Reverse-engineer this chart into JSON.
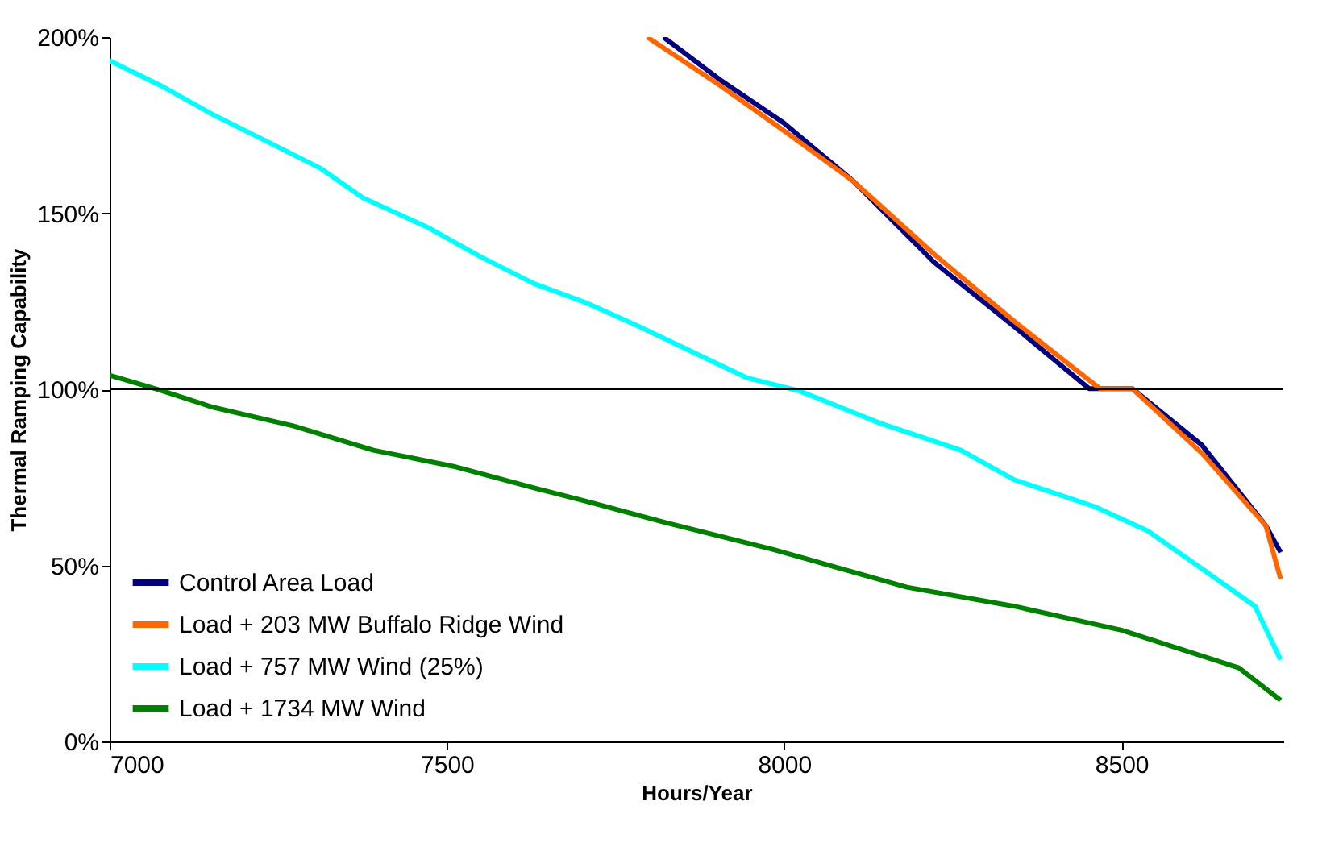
{
  "chart_data": {
    "type": "line",
    "xlabel": "Hours/Year",
    "ylabel": "Thermal Ramping Capability",
    "xlim": [
      7000,
      8740
    ],
    "xticks": [
      7000,
      7500,
      8000,
      8500
    ],
    "ylim": [
      0,
      200
    ],
    "yticks": [
      {
        "value": 0,
        "label": "0%"
      },
      {
        "value": 50,
        "label": "50%"
      },
      {
        "value": 100,
        "label": "100%"
      },
      {
        "value": 150,
        "label": "150%"
      },
      {
        "value": 200,
        "label": "200%"
      }
    ],
    "grid": false,
    "legend": "bottom left",
    "marker": "none",
    "line_style": "solid",
    "ref_lines": [
      {
        "axis": "y",
        "value": 100,
        "color": "#000000"
      }
    ],
    "series": [
      {
        "name": "Control Area Load",
        "color": "#000080",
        "x": [
          7821,
          7904,
          7999,
          8103,
          8222,
          8341,
          8452,
          8516,
          8619,
          8714,
          8736
        ],
        "values": [
          200,
          188,
          175.7,
          159,
          136.1,
          117.8,
          100.2,
          100.2,
          84.2,
          61.3,
          53.7
        ]
      },
      {
        "name": "Load + 203 MW Buffalo Ridge Wind",
        "color": "#ff6600",
        "x": [
          7797,
          7904,
          7999,
          8103,
          8222,
          8341,
          8468,
          8516,
          8619,
          8714,
          8736
        ],
        "values": [
          200,
          186.4,
          173.5,
          159,
          138.4,
          119.3,
          100.2,
          100.2,
          81.9,
          61.3,
          46.1
        ]
      },
      {
        "name": "Load + 757 MW Wind (25%)",
        "color": "#00ffff",
        "x": [
          7000,
          7074,
          7153,
          7233,
          7312,
          7375,
          7471,
          7550,
          7629,
          7706,
          7785,
          7944,
          8023,
          8143,
          8262,
          8341,
          8460,
          8539,
          8619,
          8698,
          8736
        ],
        "values": [
          193.3,
          186.4,
          178,
          170.4,
          162.8,
          154.4,
          146,
          137.6,
          130,
          124.6,
          117.8,
          103.3,
          99.5,
          90.3,
          82.7,
          74.3,
          66.7,
          59.8,
          49.1,
          38.4,
          23.2
        ]
      },
      {
        "name": "Load + 1734 MW Wind",
        "color": "#008000",
        "x": [
          7000,
          7074,
          7153,
          7272,
          7391,
          7510,
          7629,
          7706,
          7825,
          7984,
          8182,
          8341,
          8500,
          8674,
          8736
        ],
        "values": [
          104,
          99.8,
          94.9,
          89.6,
          82.7,
          78.1,
          72,
          68.2,
          62.1,
          54.5,
          43.8,
          38.4,
          31.6,
          20.9,
          11.7
        ]
      }
    ]
  }
}
